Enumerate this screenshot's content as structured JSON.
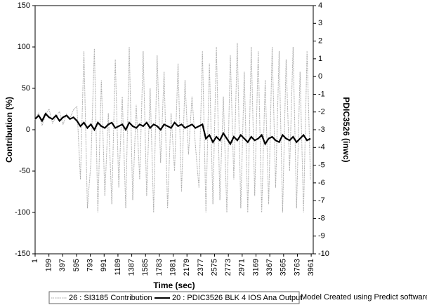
{
  "chart_data": {
    "type": "line",
    "xlabel": "Time (sec)",
    "ylabel": "Contribution (%)",
    "y2label": "PDIC3526 (inwc)",
    "annotation": "Model Created using Predict software",
    "x": [
      1,
      51,
      101,
      151,
      201,
      251,
      301,
      351,
      401,
      451,
      501,
      551,
      601,
      651,
      701,
      751,
      801,
      851,
      901,
      951,
      1001,
      1051,
      1101,
      1151,
      1201,
      1251,
      1301,
      1351,
      1401,
      1451,
      1501,
      1551,
      1601,
      1651,
      1701,
      1751,
      1801,
      1851,
      1901,
      1951,
      2001,
      2051,
      2101,
      2151,
      2201,
      2251,
      2301,
      2351,
      2401,
      2451,
      2501,
      2551,
      2601,
      2651,
      2701,
      2751,
      2801,
      2851,
      2901,
      2951,
      3001,
      3051,
      3101,
      3151,
      3201,
      3251,
      3301,
      3351,
      3401,
      3451,
      3501,
      3551,
      3601,
      3651,
      3701,
      3751,
      3801,
      3851,
      3901,
      3951
    ],
    "series": [
      {
        "name": "26 : SI3185 Contribution",
        "color": "#a8a8a8",
        "axis": "y",
        "values": [
          12,
          20,
          5,
          18,
          25,
          8,
          15,
          22,
          6,
          19,
          14,
          24,
          28,
          -60,
          95,
          -95,
          -40,
          98,
          -100,
          60,
          -80,
          20,
          -90,
          85,
          -70,
          40,
          -95,
          100,
          -85,
          30,
          -60,
          95,
          -80,
          50,
          -100,
          90,
          -40,
          70,
          -95,
          20,
          -50,
          80,
          -75,
          60,
          -30,
          40,
          -20,
          -70,
          95,
          -100,
          80,
          -90,
          100,
          -85,
          40,
          -100,
          90,
          -60,
          105,
          -95,
          70,
          -100,
          100,
          -80,
          95,
          -100,
          60,
          -90,
          100,
          -70,
          95,
          -100,
          85,
          -50,
          100,
          -95,
          70,
          -100,
          95,
          -60
        ]
      },
      {
        "name": "20 : PDIC3526 BLK 4 IOS Ana Output",
        "color": "#000000",
        "axis": "y2",
        "values": [
          -2.4,
          -2.2,
          -2.5,
          -2.1,
          -2.3,
          -2.4,
          -2.2,
          -2.5,
          -2.3,
          -2.2,
          -2.4,
          -2.3,
          -2.5,
          -2.8,
          -2.6,
          -2.9,
          -2.7,
          -3.0,
          -2.6,
          -2.8,
          -2.9,
          -2.7,
          -2.6,
          -2.9,
          -2.8,
          -2.7,
          -3.0,
          -2.6,
          -2.8,
          -2.9,
          -2.7,
          -2.8,
          -2.6,
          -2.9,
          -2.7,
          -2.8,
          -3.0,
          -2.7,
          -2.8,
          -2.9,
          -2.6,
          -2.8,
          -2.7,
          -2.9,
          -2.8,
          -2.7,
          -2.9,
          -2.8,
          -2.7,
          -3.5,
          -3.3,
          -3.7,
          -3.4,
          -3.6,
          -3.2,
          -3.5,
          -3.8,
          -3.4,
          -3.6,
          -3.3,
          -3.5,
          -3.7,
          -3.4,
          -3.6,
          -3.5,
          -3.3,
          -3.8,
          -3.5,
          -3.4,
          -3.6,
          -3.7,
          -3.3,
          -3.5,
          -3.6,
          -3.4,
          -3.7,
          -3.5,
          -3.3,
          -3.6,
          -3.5
        ]
      }
    ],
    "xlim": [
      1,
      3990
    ],
    "xticks": [
      1,
      199,
      397,
      595,
      793,
      991,
      1189,
      1387,
      1585,
      1783,
      1981,
      2179,
      2377,
      2575,
      2773,
      2971,
      3169,
      3367,
      3565,
      3763,
      3961
    ],
    "ylim": [
      -150,
      150
    ],
    "yticks": [
      -150,
      -100,
      -50,
      0,
      50,
      100,
      150
    ],
    "y2lim": [
      -10,
      4
    ],
    "y2ticks": [
      -10,
      -9,
      -8,
      -7,
      -6,
      -5,
      -4,
      -3,
      -2,
      -1,
      0,
      1,
      2,
      3,
      4
    ]
  }
}
